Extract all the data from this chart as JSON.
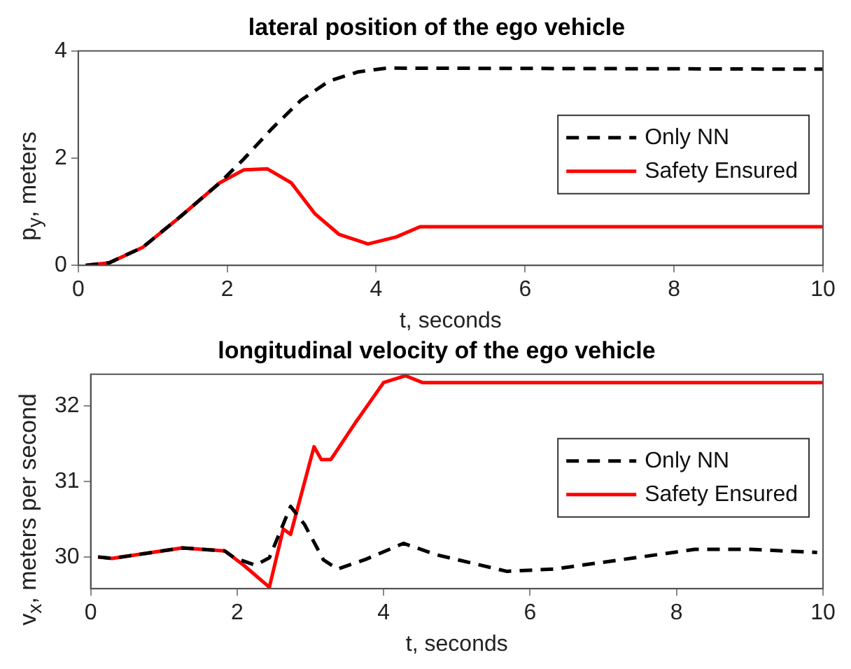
{
  "chart_data": [
    {
      "type": "line",
      "title": "lateral position of the ego vehicle",
      "xlabel": "t, seconds",
      "ylabel": "p$_{y}$, meters",
      "xlim": [
        0,
        10
      ],
      "xticks": [
        0,
        2,
        4,
        6,
        8,
        10
      ],
      "ylim": [
        0,
        4
      ],
      "yticks": [
        0,
        2,
        4
      ],
      "legend": "right",
      "series": [
        {
          "name": "Only NN",
          "color": "#000000",
          "line_style": "dashed",
          "x": [
            0.1,
            0.42,
            0.87,
            1.38,
            1.9,
            2.22,
            2.6,
            2.99,
            3.37,
            3.76,
            4.14,
            10
          ],
          "values": [
            0,
            0.05,
            0.34,
            0.92,
            1.54,
            1.98,
            2.55,
            3.08,
            3.44,
            3.61,
            3.68,
            3.66
          ]
        },
        {
          "name": "Safety Ensured",
          "color": "#ff0000",
          "line_style": "solid",
          "x": [
            0.1,
            0.42,
            0.87,
            1.38,
            1.9,
            2.22,
            2.54,
            2.86,
            3.18,
            3.5,
            3.89,
            4.27,
            4.59,
            10
          ],
          "values": [
            0,
            0.05,
            0.34,
            0.92,
            1.54,
            1.78,
            1.8,
            1.54,
            0.96,
            0.58,
            0.4,
            0.53,
            0.72,
            0.72
          ]
        }
      ]
    },
    {
      "type": "line",
      "title": "longitudinal velocity of the ego vehicle",
      "xlabel": "t, seconds",
      "ylabel": "v$_{x}$, meters per second",
      "xlim": [
        0,
        10
      ],
      "xticks": [
        0,
        2,
        4,
        6,
        8,
        10
      ],
      "ylim": [
        29.58,
        32.42
      ],
      "yticks": [
        30,
        31,
        32
      ],
      "legend": "right",
      "series": [
        {
          "name": "Only NN",
          "color": "#000000",
          "line_style": "dashed",
          "x": [
            0.1,
            0.29,
            1.25,
            1.83,
            1.96,
            2.25,
            2.44,
            2.73,
            2.92,
            3.18,
            3.37,
            3.76,
            4.27,
            4.72,
            5.68,
            6.33,
            7.29,
            8.25,
            9.02,
            9.92
          ],
          "values": [
            30,
            29.98,
            30.12,
            30.08,
            29.99,
            29.89,
            29.99,
            30.67,
            30.43,
            29.96,
            29.84,
            29.97,
            30.18,
            30.03,
            29.81,
            29.84,
            29.97,
            30.1,
            30.1,
            30.06
          ]
        },
        {
          "name": "Safety Ensured",
          "color": "#ff0000",
          "line_style": "solid",
          "x": [
            0.1,
            0.29,
            1.25,
            1.83,
            2.09,
            2.44,
            2.63,
            2.73,
            3.05,
            3.15,
            3.28,
            3.63,
            4.0,
            4.3,
            4.53,
            10
          ],
          "values": [
            30,
            29.98,
            30.12,
            30.08,
            29.89,
            29.6,
            30.37,
            30.3,
            31.46,
            31.29,
            31.29,
            31.8,
            32.31,
            32.4,
            32.31,
            32.31
          ]
        }
      ]
    }
  ]
}
